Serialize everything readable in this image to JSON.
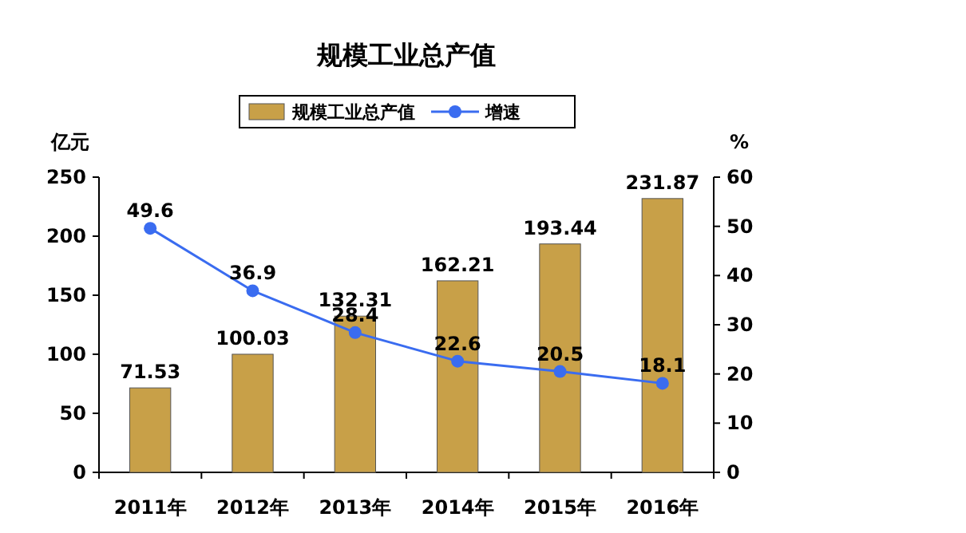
{
  "chart_data": {
    "type": "bar",
    "title": "规模工业总产值",
    "categories": [
      "2011年",
      "2012年",
      "2013年",
      "2014年",
      "2015年",
      "2016年"
    ],
    "series": [
      {
        "name": "规模工业总产值",
        "color": "#c8a048",
        "values": [
          71.53,
          100.03,
          132.31,
          162.21,
          193.44,
          231.87
        ]
      },
      {
        "name": "增速",
        "type": "line",
        "axis": "y2",
        "color": "#3a6cf0",
        "values": [
          49.6,
          36.9,
          28.4,
          22.6,
          20.5,
          18.1
        ]
      }
    ],
    "ylabel": "亿元",
    "y2label": "%",
    "ylim": [
      0,
      250
    ],
    "yticks": [
      0,
      50,
      100,
      150,
      200,
      250
    ],
    "y2lim": [
      0,
      60
    ],
    "y2ticks": [
      0,
      10,
      20,
      30,
      40,
      50,
      60
    ],
    "data_labels": true,
    "legend": "top",
    "marker": "circle"
  }
}
